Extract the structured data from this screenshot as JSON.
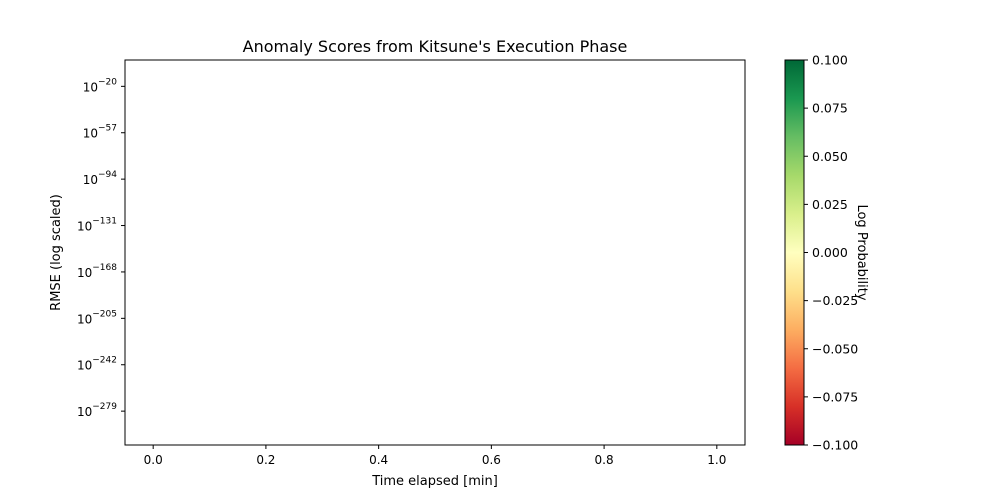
{
  "chart_data": {
    "type": "scatter",
    "title": "Anomaly Scores from Kitsune's Execution Phase",
    "xlabel": "Time elapsed [min]",
    "ylabel": "RMSE (log scaled)",
    "xlim": [
      -0.05,
      1.05
    ],
    "x_ticks": [
      {
        "value": 0.0,
        "label": "0.0"
      },
      {
        "value": 0.2,
        "label": "0.2"
      },
      {
        "value": 0.4,
        "label": "0.4"
      },
      {
        "value": 0.6,
        "label": "0.6"
      },
      {
        "value": 0.8,
        "label": "0.8"
      },
      {
        "value": 1.0,
        "label": "1.0"
      }
    ],
    "y_scale": "log",
    "ylim_exponent": [
      -306,
      1
    ],
    "y_ticks": [
      {
        "exponent": -20,
        "base": "10",
        "sup": "−20"
      },
      {
        "exponent": -57,
        "base": "10",
        "sup": "−57"
      },
      {
        "exponent": -94,
        "base": "10",
        "sup": "−94"
      },
      {
        "exponent": -131,
        "base": "10",
        "sup": "−131"
      },
      {
        "exponent": -168,
        "base": "10",
        "sup": "−168"
      },
      {
        "exponent": -205,
        "base": "10",
        "sup": "−205"
      },
      {
        "exponent": -242,
        "base": "10",
        "sup": "−242"
      },
      {
        "exponent": -279,
        "base": "10",
        "sup": "−279"
      }
    ],
    "points": [],
    "grid": false,
    "colorbar": {
      "label": "Log Probability",
      "colormap": "RdYlGn",
      "colors": [
        "#a50026",
        "#d73027",
        "#f46d43",
        "#fdae61",
        "#fee08b",
        "#ffffbf",
        "#d9ef8b",
        "#a6d96a",
        "#66bd63",
        "#1a9850",
        "#006837"
      ],
      "range": [
        -0.1,
        0.1
      ],
      "ticks": [
        {
          "value": 0.1,
          "label": "0.100"
        },
        {
          "value": 0.075,
          "label": "0.075"
        },
        {
          "value": 0.05,
          "label": "0.050"
        },
        {
          "value": 0.025,
          "label": "0.025"
        },
        {
          "value": 0.0,
          "label": "0.000"
        },
        {
          "value": -0.025,
          "label": "−0.025"
        },
        {
          "value": -0.05,
          "label": "−0.050"
        },
        {
          "value": -0.075,
          "label": "−0.075"
        },
        {
          "value": -0.1,
          "label": "−0.100"
        }
      ]
    }
  }
}
